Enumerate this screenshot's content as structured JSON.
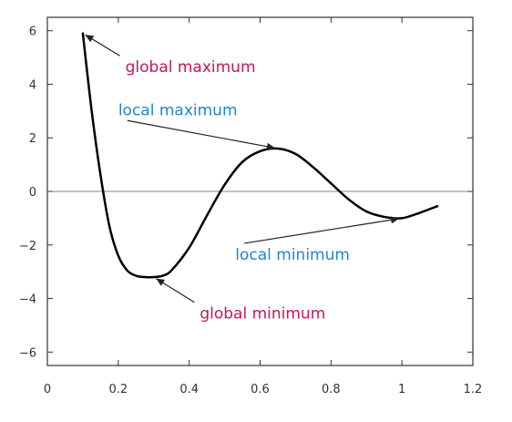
{
  "chart_data": {
    "type": "line",
    "title": "",
    "xlabel": "",
    "ylabel": "",
    "xlim": [
      0,
      1.2
    ],
    "ylim": [
      -6.5,
      6.5
    ],
    "x_ticks": [
      0,
      0.2,
      0.4,
      0.6,
      0.8,
      1,
      1.2
    ],
    "x_tick_labels": [
      "0",
      "0.2",
      "0.4",
      "0.6",
      "0.8",
      "1",
      "1.2"
    ],
    "y_ticks": [
      -6,
      -4,
      -2,
      0,
      2,
      4,
      6
    ],
    "y_tick_labels": [
      "−6",
      "−4",
      "−2",
      "0",
      "2",
      "4",
      "6"
    ],
    "grid": false,
    "zero_line": true,
    "series": [
      {
        "x": [
          0.1,
          0.125,
          0.15,
          0.175,
          0.2,
          0.225,
          0.25,
          0.275,
          0.3,
          0.325,
          0.35,
          0.4,
          0.45,
          0.5,
          0.55,
          0.6,
          0.65,
          0.7,
          0.75,
          0.8,
          0.85,
          0.9,
          0.95,
          1.0,
          1.05,
          1.1
        ],
        "y": [
          5.9,
          3.0,
          0.6,
          -1.3,
          -2.4,
          -2.95,
          -3.15,
          -3.2,
          -3.2,
          -3.15,
          -2.95,
          -2.1,
          -0.9,
          0.25,
          1.1,
          1.5,
          1.6,
          1.4,
          0.9,
          0.3,
          -0.3,
          -0.75,
          -0.95,
          -1.0,
          -0.8,
          -0.55
        ],
        "color": "#000000"
      }
    ],
    "annotations": [
      {
        "text": "global maximum",
        "color": "#c2185b",
        "point": [
          0.1,
          5.9
        ],
        "text_at": [
          0.22,
          4.45
        ]
      },
      {
        "text": "local maximum",
        "color": "#1e88c8",
        "point": [
          0.65,
          1.6
        ],
        "text_at": [
          0.2,
          2.85
        ]
      },
      {
        "text": "local minimum",
        "color": "#1e88c8",
        "point": [
          1.0,
          -1.0
        ],
        "text_at": [
          0.53,
          -2.55
        ]
      },
      {
        "text": "global minimum",
        "color": "#c2185b",
        "point": [
          0.3,
          -3.2
        ],
        "text_at": [
          0.43,
          -4.75
        ]
      }
    ]
  }
}
